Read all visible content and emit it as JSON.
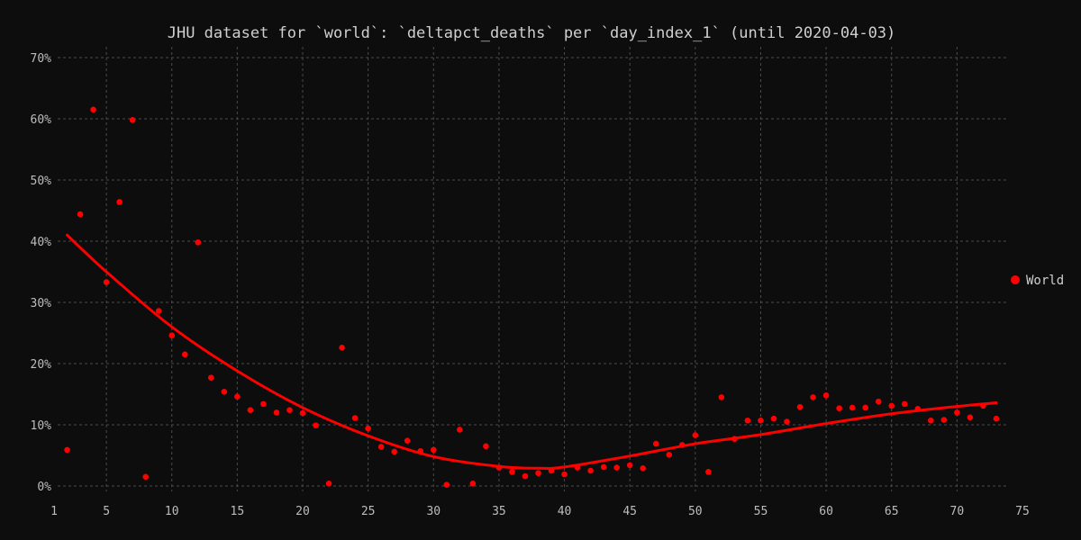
{
  "chart_data": {
    "type": "scatter",
    "title": "JHU dataset for `world`: `deltapct_deaths` per `day_index_1` (until 2020-04-03)",
    "xlabel": "",
    "ylabel": "",
    "xlim": [
      1,
      75
    ],
    "ylim": [
      0,
      70
    ],
    "grid": true,
    "legend_position": "right",
    "x_ticks": [
      1,
      5,
      10,
      15,
      20,
      25,
      30,
      35,
      40,
      45,
      50,
      55,
      60,
      65,
      70,
      75
    ],
    "x_tick_labels": [
      "1",
      "5",
      "10",
      "15",
      "20",
      "25",
      "30",
      "35",
      "40",
      "45",
      "50",
      "55",
      "60",
      "65",
      "70",
      "75"
    ],
    "y_ticks": [
      0,
      10,
      20,
      30,
      40,
      50,
      60,
      70
    ],
    "y_tick_labels": [
      "0%",
      "10%",
      "20%",
      "30%",
      "40%",
      "50%",
      "60%",
      "70%"
    ],
    "series": [
      {
        "name": "World",
        "color": "#ff0000",
        "points": [
          [
            2,
            5.9
          ],
          [
            3,
            44.4
          ],
          [
            4,
            61.5
          ],
          [
            5,
            33.3
          ],
          [
            6,
            46.4
          ],
          [
            7,
            59.8
          ],
          [
            8,
            1.5
          ],
          [
            9,
            28.6
          ],
          [
            10,
            24.6
          ],
          [
            11,
            21.5
          ],
          [
            12,
            39.8
          ],
          [
            13,
            17.7
          ],
          [
            14,
            15.4
          ],
          [
            15,
            14.6
          ],
          [
            16,
            12.4
          ],
          [
            17,
            13.4
          ],
          [
            18,
            12.0
          ],
          [
            19,
            12.4
          ],
          [
            20,
            11.9
          ],
          [
            21,
            9.9
          ],
          [
            22,
            0.4
          ],
          [
            23,
            22.6
          ],
          [
            24,
            11.1
          ],
          [
            25,
            9.4
          ],
          [
            26,
            6.4
          ],
          [
            27,
            5.6
          ],
          [
            28,
            7.4
          ],
          [
            29,
            5.7
          ],
          [
            30,
            5.9
          ],
          [
            31,
            0.2
          ],
          [
            32,
            9.2
          ],
          [
            33,
            0.4
          ],
          [
            34,
            6.5
          ],
          [
            35,
            3.0
          ],
          [
            36,
            2.3
          ],
          [
            37,
            1.6
          ],
          [
            38,
            2.1
          ],
          [
            39,
            2.5
          ],
          [
            40,
            1.9
          ],
          [
            41,
            3.0
          ],
          [
            42,
            2.5
          ],
          [
            43,
            3.1
          ],
          [
            44,
            3.0
          ],
          [
            45,
            3.4
          ],
          [
            46,
            2.9
          ],
          [
            47,
            6.9
          ],
          [
            48,
            5.1
          ],
          [
            49,
            6.7
          ],
          [
            50,
            8.3
          ],
          [
            51,
            2.3
          ],
          [
            52,
            14.5
          ],
          [
            53,
            7.7
          ],
          [
            54,
            10.7
          ],
          [
            55,
            10.7
          ],
          [
            56,
            11.0
          ],
          [
            57,
            10.5
          ],
          [
            58,
            12.9
          ],
          [
            59,
            14.5
          ],
          [
            60,
            14.8
          ],
          [
            61,
            12.7
          ],
          [
            62,
            12.8
          ],
          [
            63,
            12.8
          ],
          [
            64,
            13.8
          ],
          [
            65,
            13.1
          ],
          [
            66,
            13.4
          ],
          [
            67,
            12.6
          ],
          [
            68,
            10.7
          ],
          [
            69,
            10.8
          ],
          [
            70,
            12.0
          ],
          [
            71,
            11.2
          ],
          [
            72,
            13.1
          ],
          [
            73,
            11.0
          ]
        ],
        "trend": [
          [
            2,
            41.0
          ],
          [
            5,
            35.0
          ],
          [
            10,
            26.0
          ],
          [
            15,
            18.8
          ],
          [
            20,
            12.8
          ],
          [
            25,
            8.2
          ],
          [
            30,
            4.8
          ],
          [
            35,
            3.2
          ],
          [
            38,
            2.9
          ],
          [
            40,
            3.1
          ],
          [
            45,
            4.9
          ],
          [
            50,
            6.9
          ],
          [
            55,
            8.4
          ],
          [
            60,
            10.2
          ],
          [
            65,
            11.8
          ],
          [
            70,
            13.0
          ],
          [
            73,
            13.6
          ]
        ]
      }
    ]
  }
}
